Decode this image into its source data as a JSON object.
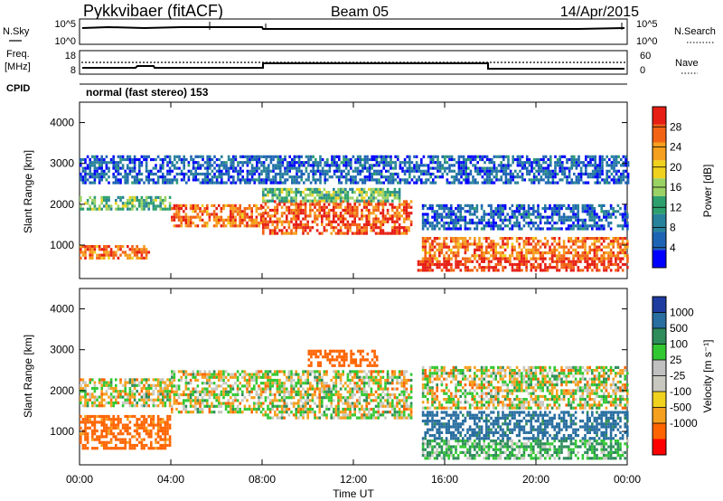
{
  "header": {
    "station": "Pykkvibaer (fitACF)",
    "beam": "Beam 05",
    "date": "14/Apr/2015"
  },
  "noise_panel": {
    "left_label": "N.Sky",
    "right_label": "N.Search",
    "left_ticks": [
      "10^5",
      "10^0"
    ],
    "right_ticks": [
      "10^5",
      "10^0"
    ]
  },
  "freq_panel": {
    "left_label_1": "Freq.",
    "left_label_2": "[MHz]",
    "right_label": "Nave",
    "left_ticks": [
      "18",
      "8"
    ],
    "right_ticks": [
      "60",
      "0"
    ]
  },
  "cpid": {
    "label": "CPID",
    "value": "normal (fast stereo) 153"
  },
  "colors": {
    "power_scale": [
      "#0000ff",
      "#1e64b4",
      "#28829b",
      "#2ea06e",
      "#9bd264",
      "#f0d21e",
      "#f5a01e",
      "#f26414",
      "#e61e14"
    ],
    "velocity_scale": [
      "#ff0000",
      "#ff6400",
      "#f5a01e",
      "#f0d21e",
      "#c8c8c0",
      "#c0c0c0",
      "#32c832",
      "#2d8c5a",
      "#286ea0",
      "#1e3ca0"
    ],
    "scatter_grey": "#c8c8c0"
  },
  "chart_data": [
    {
      "type": "heatmap",
      "panel": "power",
      "ylabel": "Slant Range [km]",
      "y_ticks": [
        "1000",
        "2000",
        "3000",
        "4000"
      ],
      "ylim": [
        180,
        4500
      ],
      "xlim": [
        0,
        24
      ],
      "colorbar_label": "Power [dB]",
      "colorbar_ticks": [
        "4",
        "8",
        "12",
        "16",
        "20",
        "24",
        "28"
      ],
      "colorbar_range": [
        0,
        32
      ],
      "echo_bands": [
        {
          "t": [
            0,
            3
          ],
          "range_km": [
            700,
            1000
          ],
          "power_db": 26
        },
        {
          "t": [
            0,
            4
          ],
          "range_km": [
            1900,
            2200
          ],
          "power_db": 14
        },
        {
          "t": [
            4,
            8
          ],
          "range_km": [
            1500,
            2000
          ],
          "power_db": 26
        },
        {
          "t": [
            8,
            14.5
          ],
          "range_km": [
            1300,
            2100
          ],
          "power_db": 28
        },
        {
          "t": [
            8,
            14
          ],
          "range_km": [
            2100,
            2400
          ],
          "power_db": 14
        },
        {
          "t": [
            14.8,
            24
          ],
          "range_km": [
            400,
            700
          ],
          "power_db": 30
        },
        {
          "t": [
            15,
            24
          ],
          "range_km": [
            700,
            1200
          ],
          "power_db": 26
        },
        {
          "t": [
            15,
            24
          ],
          "range_km": [
            1400,
            2000
          ],
          "power_db": 6
        },
        {
          "t": [
            0,
            24
          ],
          "range_km": [
            2500,
            3200
          ],
          "power_db": 6
        }
      ]
    },
    {
      "type": "heatmap",
      "panel": "velocity",
      "ylabel": "Slant Range [km]",
      "y_ticks": [
        "1000",
        "2000",
        "3000",
        "4000"
      ],
      "ylim": [
        180,
        4500
      ],
      "xlim": [
        0,
        24
      ],
      "xlabel": "Time UT",
      "x_ticks": [
        "00:00",
        "04:00",
        "08:00",
        "12:00",
        "16:00",
        "20:00",
        "00:00"
      ],
      "colorbar_label": "Velocity [m s⁻¹]",
      "colorbar_ticks": [
        "1000",
        "500",
        "100",
        "25",
        "-25",
        "-100",
        "-500",
        "-1000"
      ],
      "echo_bands": [
        {
          "t": [
            0,
            4
          ],
          "range_km": [
            1600,
            2300
          ],
          "velocity_ms": 0
        },
        {
          "t": [
            4,
            8
          ],
          "range_km": [
            1500,
            2500
          ],
          "velocity_ms": 0
        },
        {
          "t": [
            8,
            14.5
          ],
          "range_km": [
            1300,
            2500
          ],
          "velocity_ms": 0
        },
        {
          "t": [
            0,
            4
          ],
          "range_km": [
            600,
            1400
          ],
          "velocity_ms": -200
        },
        {
          "t": [
            10,
            13
          ],
          "range_km": [
            2600,
            3000
          ],
          "velocity_ms": -300
        },
        {
          "t": [
            15,
            24
          ],
          "range_km": [
            350,
            800
          ],
          "velocity_ms": 100
        },
        {
          "t": [
            15,
            24
          ],
          "range_km": [
            800,
            1500
          ],
          "velocity_ms": 600
        },
        {
          "t": [
            15,
            24
          ],
          "range_km": [
            1600,
            2600
          ],
          "velocity_ms": 0
        }
      ]
    }
  ]
}
